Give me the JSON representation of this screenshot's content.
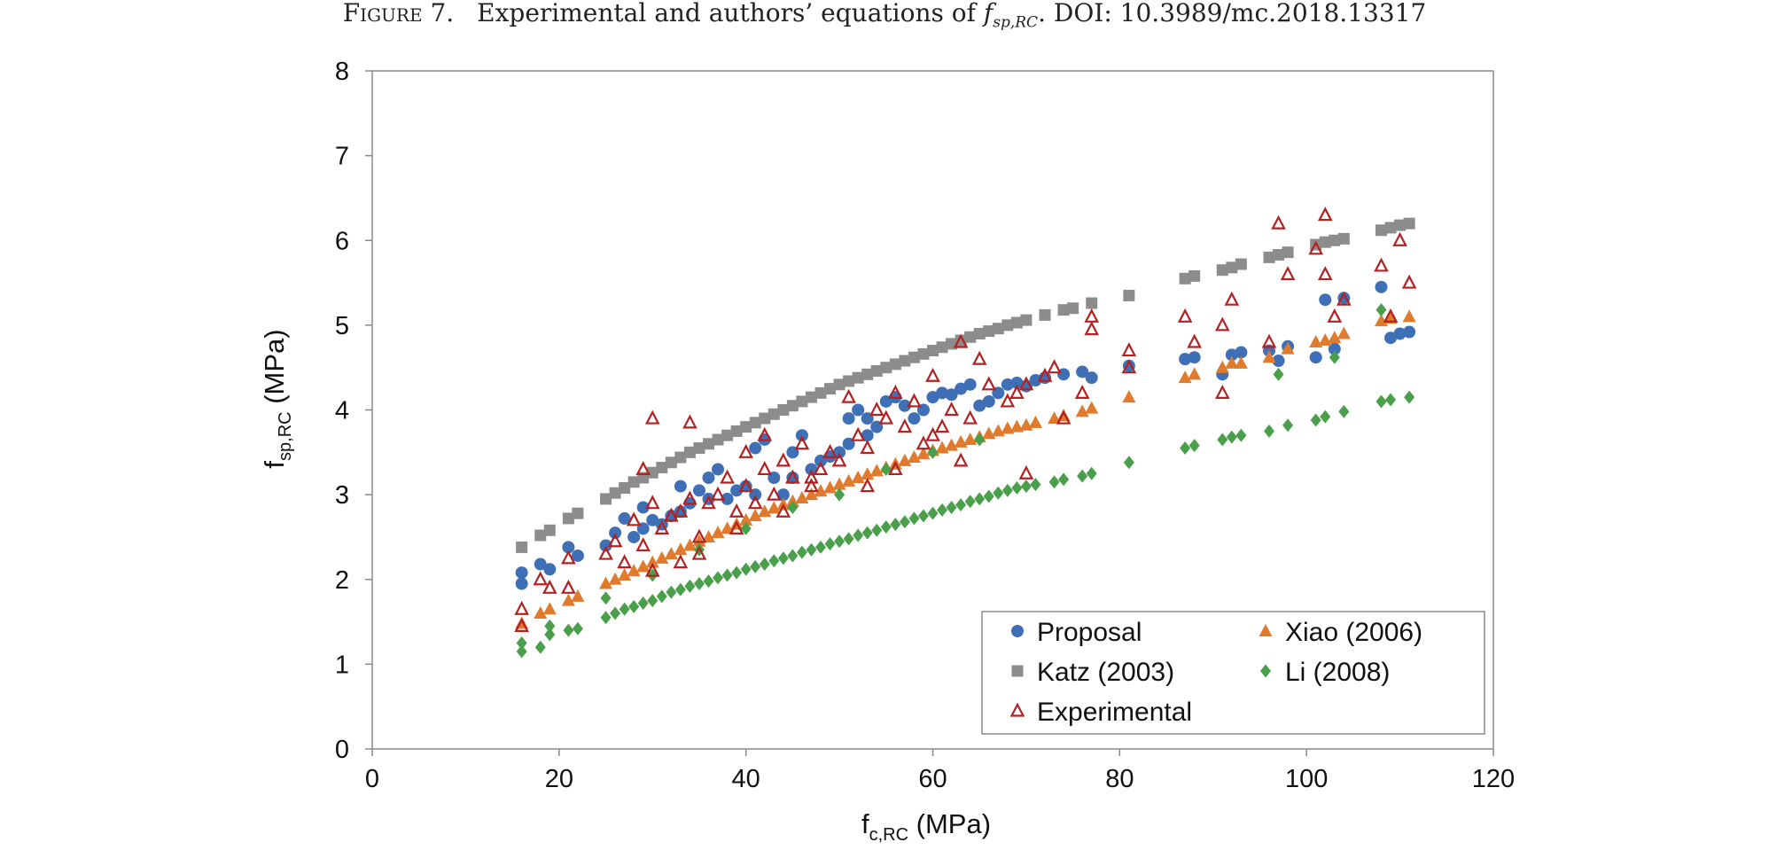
{
  "caption": {
    "label": "Figure 7.",
    "text_before": "Experimental and authors’ equations of ",
    "symbol": "f",
    "symbol_sub": "sp,RC",
    "text_after": ". DOI: 10.3989/mc.2018.13317"
  },
  "chart_data": {
    "type": "scatter",
    "xlabel_main": "f",
    "xlabel_sub": "c,RC",
    "xlabel_unit": " (MPa)",
    "ylabel_main": "f",
    "ylabel_sub": "sp,RC",
    "ylabel_unit": " (MPa)",
    "xlim": [
      0,
      120
    ],
    "ylim": [
      0,
      8
    ],
    "xticks": [
      "0",
      "20",
      "40",
      "60",
      "80",
      "100",
      "120"
    ],
    "yticks": [
      "0",
      "1",
      "2",
      "3",
      "4",
      "5",
      "6",
      "7",
      "8"
    ],
    "grid": false,
    "legend_position": "bottom-right",
    "legend": [
      {
        "name": "Proposal",
        "marker": "circle",
        "color": "#3f6fb5"
      },
      {
        "name": "Xiao (2006)",
        "marker": "triangle",
        "color": "#e07b2e"
      },
      {
        "name": "Katz (2003)",
        "marker": "square",
        "color": "#8c8c8c"
      },
      {
        "name": "Li (2008)",
        "marker": "diamond",
        "color": "#4aa04a"
      },
      {
        "name": "Experimental",
        "marker": "triangle-open",
        "color": "#b22222"
      }
    ],
    "series": [
      {
        "name": "Katz (2003)",
        "marker": "square",
        "color": "#8c8c8c",
        "x": [
          16,
          18,
          19,
          21,
          22,
          25,
          26,
          27,
          28,
          29,
          30,
          31,
          32,
          33,
          34,
          35,
          36,
          37,
          38,
          39,
          40,
          41,
          42,
          43,
          44,
          45,
          46,
          47,
          48,
          49,
          50,
          51,
          52,
          53,
          54,
          55,
          56,
          57,
          58,
          59,
          60,
          61,
          62,
          63,
          64,
          65,
          66,
          67,
          68,
          69,
          70,
          72,
          74,
          75,
          77,
          81,
          87,
          88,
          91,
          92,
          93,
          96,
          97,
          98,
          101,
          102,
          103,
          104,
          108,
          109,
          110,
          111
        ],
        "y": [
          2.38,
          2.52,
          2.58,
          2.72,
          2.78,
          2.95,
          3.02,
          3.08,
          3.15,
          3.2,
          3.26,
          3.32,
          3.38,
          3.44,
          3.5,
          3.55,
          3.6,
          3.65,
          3.7,
          3.75,
          3.8,
          3.85,
          3.9,
          3.95,
          4.0,
          4.05,
          4.1,
          4.15,
          4.2,
          4.25,
          4.3,
          4.34,
          4.38,
          4.42,
          4.46,
          4.5,
          4.54,
          4.58,
          4.62,
          4.66,
          4.7,
          4.74,
          4.78,
          4.82,
          4.86,
          4.9,
          4.93,
          4.96,
          5.0,
          5.03,
          5.06,
          5.12,
          5.18,
          5.2,
          5.26,
          5.35,
          5.55,
          5.58,
          5.65,
          5.68,
          5.72,
          5.8,
          5.83,
          5.86,
          5.95,
          5.98,
          6.0,
          6.02,
          6.12,
          6.15,
          6.18,
          6.2
        ]
      },
      {
        "name": "Proposal",
        "marker": "circle",
        "color": "#3f6fb5",
        "x": [
          16,
          16,
          18,
          19,
          21,
          22,
          25,
          26,
          27,
          28,
          29,
          29,
          30,
          31,
          32,
          33,
          33,
          34,
          35,
          36,
          36,
          37,
          38,
          39,
          40,
          41,
          41,
          42,
          43,
          44,
          45,
          45,
          46,
          47,
          48,
          49,
          50,
          51,
          51,
          52,
          53,
          53,
          54,
          55,
          56,
          57,
          58,
          59,
          60,
          61,
          62,
          63,
          64,
          65,
          66,
          67,
          68,
          69,
          70,
          71,
          72,
          74,
          76,
          77,
          81,
          87,
          88,
          91,
          92,
          93,
          96,
          97,
          98,
          101,
          102,
          103,
          104,
          108,
          109,
          110,
          111
        ],
        "y": [
          2.08,
          1.95,
          2.18,
          2.12,
          2.38,
          2.28,
          2.4,
          2.55,
          2.72,
          2.5,
          2.85,
          2.6,
          2.7,
          2.65,
          2.75,
          3.1,
          2.8,
          2.9,
          3.05,
          2.95,
          3.2,
          3.3,
          2.95,
          3.05,
          3.1,
          3.55,
          3.0,
          3.65,
          3.2,
          3.0,
          3.2,
          3.5,
          3.7,
          3.3,
          3.4,
          3.45,
          3.5,
          3.9,
          3.6,
          4.0,
          3.7,
          3.9,
          3.8,
          4.1,
          4.15,
          4.05,
          3.9,
          4.0,
          4.15,
          4.2,
          4.18,
          4.25,
          4.3,
          4.05,
          4.1,
          4.2,
          4.3,
          4.32,
          4.28,
          4.35,
          4.38,
          4.42,
          4.45,
          4.38,
          4.52,
          4.6,
          4.62,
          4.42,
          4.65,
          4.68,
          4.7,
          4.58,
          4.75,
          4.62,
          5.3,
          4.72,
          5.32,
          5.45,
          4.85,
          4.9,
          4.92
        ]
      },
      {
        "name": "Xiao (2006)",
        "marker": "triangle",
        "color": "#e07b2e",
        "x": [
          16,
          18,
          19,
          21,
          22,
          25,
          26,
          27,
          28,
          29,
          30,
          31,
          32,
          33,
          34,
          35,
          36,
          37,
          38,
          39,
          40,
          41,
          42,
          43,
          44,
          45,
          46,
          47,
          48,
          49,
          50,
          51,
          52,
          53,
          54,
          55,
          56,
          57,
          58,
          59,
          60,
          61,
          62,
          63,
          64,
          65,
          66,
          67,
          68,
          69,
          70,
          71,
          73,
          74,
          76,
          77,
          81,
          87,
          88,
          91,
          92,
          93,
          96,
          98,
          101,
          102,
          103,
          104,
          108,
          109,
          111
        ],
        "y": [
          1.48,
          1.6,
          1.65,
          1.75,
          1.8,
          1.95,
          2.0,
          2.05,
          2.1,
          2.15,
          2.2,
          2.25,
          2.3,
          2.35,
          2.4,
          2.45,
          2.5,
          2.55,
          2.6,
          2.65,
          2.7,
          2.75,
          2.8,
          2.84,
          2.88,
          2.92,
          2.96,
          3.0,
          3.04,
          3.08,
          3.12,
          3.16,
          3.2,
          3.24,
          3.28,
          3.32,
          3.36,
          3.4,
          3.44,
          3.48,
          3.52,
          3.55,
          3.58,
          3.62,
          3.65,
          3.68,
          3.72,
          3.75,
          3.78,
          3.8,
          3.82,
          3.85,
          3.9,
          3.93,
          3.98,
          4.02,
          4.15,
          4.38,
          4.42,
          4.5,
          4.55,
          4.55,
          4.62,
          4.72,
          4.8,
          4.82,
          4.85,
          4.9,
          5.05,
          5.08,
          5.1
        ]
      },
      {
        "name": "Li (2008)",
        "marker": "diamond",
        "color": "#4aa04a",
        "x": [
          16,
          16,
          18,
          19,
          19,
          21,
          22,
          25,
          25,
          26,
          27,
          28,
          29,
          30,
          31,
          32,
          33,
          34,
          35,
          36,
          37,
          38,
          39,
          40,
          41,
          42,
          43,
          44,
          45,
          46,
          47,
          48,
          49,
          50,
          51,
          52,
          53,
          54,
          55,
          56,
          57,
          58,
          59,
          60,
          61,
          62,
          63,
          64,
          65,
          66,
          67,
          68,
          69,
          70,
          71,
          73,
          74,
          76,
          77,
          81,
          87,
          88,
          91,
          92,
          93,
          96,
          98,
          101,
          102,
          104,
          108,
          109,
          111,
          30,
          35,
          40,
          45,
          50,
          55,
          60,
          65,
          97,
          103,
          108
        ],
        "y": [
          1.15,
          1.25,
          1.2,
          1.35,
          1.45,
          1.4,
          1.42,
          1.55,
          1.78,
          1.6,
          1.65,
          1.68,
          1.72,
          1.75,
          1.8,
          1.85,
          1.88,
          1.92,
          1.95,
          1.98,
          2.02,
          2.05,
          2.08,
          2.12,
          2.15,
          2.18,
          2.22,
          2.25,
          2.28,
          2.32,
          2.35,
          2.38,
          2.42,
          2.45,
          2.48,
          2.52,
          2.55,
          2.58,
          2.62,
          2.65,
          2.68,
          2.72,
          2.75,
          2.78,
          2.82,
          2.85,
          2.88,
          2.92,
          2.95,
          2.98,
          3.02,
          3.05,
          3.08,
          3.1,
          3.12,
          3.15,
          3.18,
          3.22,
          3.25,
          3.38,
          3.55,
          3.58,
          3.65,
          3.68,
          3.7,
          3.75,
          3.82,
          3.88,
          3.92,
          3.98,
          4.1,
          4.12,
          4.15,
          2.05,
          2.35,
          2.6,
          2.85,
          3.0,
          3.3,
          3.5,
          3.65,
          4.42,
          4.62,
          5.18
        ]
      },
      {
        "name": "Experimental",
        "marker": "triangle-open",
        "color": "#b22222",
        "x": [
          16,
          16,
          18,
          19,
          21,
          21,
          25,
          26,
          27,
          28,
          29,
          29,
          30,
          30,
          31,
          32,
          33,
          34,
          34,
          35,
          36,
          37,
          38,
          39,
          40,
          40,
          41,
          42,
          42,
          43,
          44,
          45,
          46,
          47,
          48,
          49,
          50,
          51,
          52,
          53,
          54,
          55,
          56,
          57,
          58,
          59,
          60,
          61,
          62,
          63,
          64,
          65,
          66,
          68,
          69,
          70,
          72,
          73,
          76,
          77,
          81,
          87,
          88,
          91,
          92,
          96,
          97,
          98,
          101,
          102,
          103,
          104,
          108,
          109,
          110,
          111,
          30,
          33,
          35,
          39,
          44,
          47,
          53,
          56,
          60,
          63,
          70,
          74,
          77,
          81,
          91,
          102
        ],
        "y": [
          1.45,
          1.65,
          2.0,
          1.9,
          1.9,
          2.25,
          2.3,
          2.45,
          2.2,
          2.7,
          2.4,
          3.3,
          2.9,
          3.9,
          2.6,
          2.75,
          2.8,
          2.95,
          3.85,
          2.5,
          2.9,
          3.0,
          3.2,
          2.8,
          3.1,
          3.5,
          2.9,
          3.3,
          3.7,
          3.0,
          3.4,
          3.2,
          3.6,
          3.1,
          3.3,
          3.5,
          3.4,
          4.15,
          3.7,
          3.55,
          4.0,
          3.9,
          4.2,
          3.8,
          4.1,
          3.6,
          4.4,
          3.8,
          4.0,
          4.8,
          3.9,
          4.6,
          4.3,
          4.1,
          4.2,
          4.3,
          4.4,
          4.5,
          4.2,
          5.1,
          4.7,
          5.1,
          4.8,
          5.0,
          5.3,
          4.8,
          6.2,
          5.6,
          5.9,
          6.3,
          5.1,
          5.3,
          5.7,
          5.1,
          6.0,
          5.5,
          2.1,
          2.2,
          2.3,
          2.6,
          2.8,
          3.2,
          3.1,
          3.3,
          3.7,
          3.4,
          3.25,
          3.9,
          4.95,
          4.5,
          4.2,
          5.6
        ]
      }
    ]
  }
}
